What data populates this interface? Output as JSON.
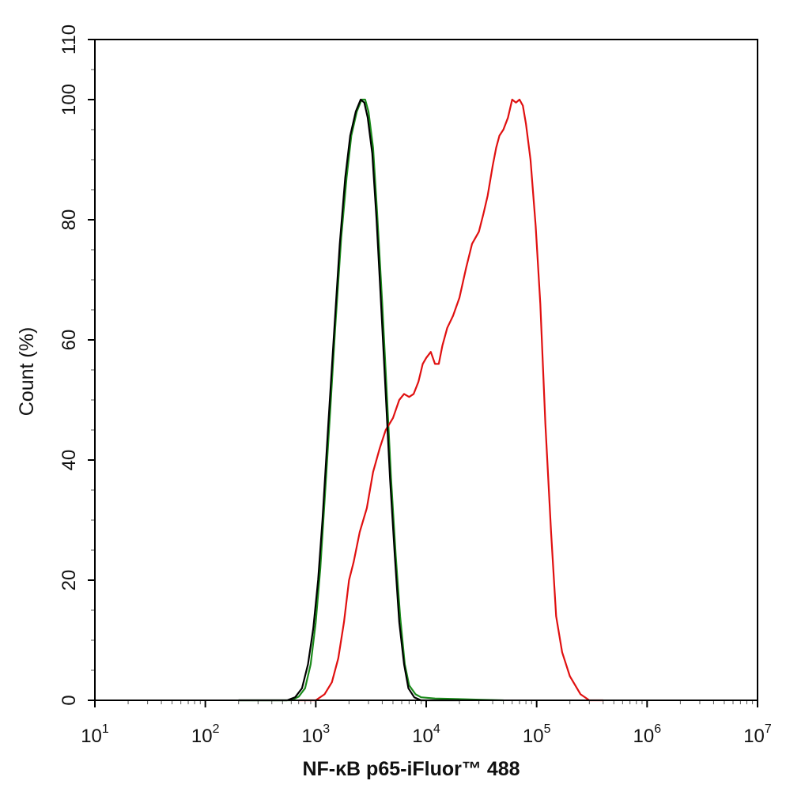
{
  "chart_data": {
    "type": "line",
    "title": "",
    "xlabel": "NF-κB p65-iFluor™ 488",
    "ylabel": "Count  (%)",
    "x_scale": "log",
    "xlim": [
      10,
      10000000
    ],
    "ylim": [
      0,
      110
    ],
    "x_ticks": [
      {
        "base": "10",
        "exp": "1",
        "value": 10
      },
      {
        "base": "10",
        "exp": "2",
        "value": 100
      },
      {
        "base": "10",
        "exp": "3",
        "value": 1000
      },
      {
        "base": "10",
        "exp": "4",
        "value": 10000
      },
      {
        "base": "10",
        "exp": "5",
        "value": 100000
      },
      {
        "base": "10",
        "exp": "6",
        "value": 1000000
      },
      {
        "base": "10",
        "exp": "7",
        "value": 10000000
      }
    ],
    "y_ticks": [
      0,
      20,
      40,
      60,
      80,
      100,
      110
    ],
    "grid": false,
    "legend": "none",
    "series": [
      {
        "color": "#1a8a1a",
        "points": [
          [
            200,
            0
          ],
          [
            600,
            0
          ],
          [
            700,
            0.6
          ],
          [
            800,
            2
          ],
          [
            900,
            6
          ],
          [
            1000,
            13
          ],
          [
            1100,
            22
          ],
          [
            1200,
            33
          ],
          [
            1350,
            48
          ],
          [
            1500,
            62
          ],
          [
            1700,
            77
          ],
          [
            1900,
            87
          ],
          [
            2100,
            94
          ],
          [
            2350,
            98
          ],
          [
            2600,
            100
          ],
          [
            2800,
            100
          ],
          [
            3000,
            98
          ],
          [
            3300,
            92
          ],
          [
            3600,
            81
          ],
          [
            4000,
            66
          ],
          [
            4400,
            51
          ],
          [
            4800,
            37
          ],
          [
            5300,
            24
          ],
          [
            5800,
            14
          ],
          [
            6400,
            6
          ],
          [
            7000,
            2.5
          ],
          [
            8000,
            1
          ],
          [
            9000,
            0.5
          ],
          [
            12000,
            0.3
          ],
          [
            20000,
            0.2
          ],
          [
            30000,
            0.1
          ],
          [
            50000,
            0
          ]
        ]
      },
      {
        "color": "#e01010",
        "points": [
          [
            700,
            0
          ],
          [
            1000,
            0
          ],
          [
            1200,
            1
          ],
          [
            1400,
            3
          ],
          [
            1600,
            7
          ],
          [
            1800,
            13
          ],
          [
            2000,
            20
          ],
          [
            2200,
            23
          ],
          [
            2500,
            28
          ],
          [
            2900,
            32
          ],
          [
            3300,
            38
          ],
          [
            3800,
            42
          ],
          [
            4300,
            45
          ],
          [
            5000,
            47
          ],
          [
            5700,
            50
          ],
          [
            6300,
            51
          ],
          [
            7000,
            50.5
          ],
          [
            7700,
            51
          ],
          [
            8500,
            53
          ],
          [
            9300,
            56
          ],
          [
            10000,
            57
          ],
          [
            11000,
            58
          ],
          [
            12000,
            56
          ],
          [
            13000,
            56
          ],
          [
            14000,
            59
          ],
          [
            15500,
            62
          ],
          [
            17500,
            64
          ],
          [
            20000,
            67
          ],
          [
            23000,
            72
          ],
          [
            26000,
            76
          ],
          [
            30000,
            78
          ],
          [
            33000,
            81
          ],
          [
            36000,
            84
          ],
          [
            40000,
            89
          ],
          [
            43000,
            92
          ],
          [
            46000,
            94
          ],
          [
            50000,
            95
          ],
          [
            55000,
            97
          ],
          [
            60000,
            100
          ],
          [
            65000,
            99.5
          ],
          [
            70000,
            100
          ],
          [
            75000,
            99
          ],
          [
            80000,
            96
          ],
          [
            88000,
            90
          ],
          [
            98000,
            79
          ],
          [
            108000,
            66
          ],
          [
            120000,
            46
          ],
          [
            135000,
            28
          ],
          [
            150000,
            14
          ],
          [
            170000,
            8
          ],
          [
            200000,
            4
          ],
          [
            250000,
            1
          ],
          [
            300000,
            0
          ],
          [
            400000,
            0
          ]
        ]
      },
      {
        "color": "#000000",
        "points": [
          [
            200,
            0
          ],
          [
            550,
            0
          ],
          [
            650,
            0.5
          ],
          [
            750,
            2
          ],
          [
            850,
            6
          ],
          [
            950,
            12
          ],
          [
            1050,
            20
          ],
          [
            1150,
            30
          ],
          [
            1300,
            46
          ],
          [
            1450,
            60
          ],
          [
            1650,
            76
          ],
          [
            1850,
            87
          ],
          [
            2050,
            94
          ],
          [
            2300,
            98
          ],
          [
            2550,
            100
          ],
          [
            2750,
            99.5
          ],
          [
            2950,
            97
          ],
          [
            3250,
            91
          ],
          [
            3550,
            80
          ],
          [
            3900,
            66
          ],
          [
            4300,
            51
          ],
          [
            4700,
            37
          ],
          [
            5200,
            24
          ],
          [
            5700,
            13
          ],
          [
            6300,
            6
          ],
          [
            6900,
            2
          ],
          [
            7800,
            0.5
          ],
          [
            9000,
            0
          ],
          [
            20000,
            0
          ]
        ]
      }
    ]
  }
}
